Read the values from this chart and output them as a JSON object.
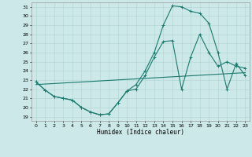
{
  "title": "",
  "xlabel": "Humidex (Indice chaleur)",
  "bg_color": "#cce8e8",
  "line_color": "#1a7a6e",
  "xlim": [
    -0.5,
    23.5
  ],
  "ylim": [
    18.5,
    31.5
  ],
  "xticks": [
    0,
    1,
    2,
    3,
    4,
    5,
    6,
    7,
    8,
    9,
    10,
    11,
    12,
    13,
    14,
    15,
    16,
    17,
    18,
    19,
    20,
    21,
    22,
    23
  ],
  "yticks": [
    19,
    20,
    21,
    22,
    23,
    24,
    25,
    26,
    27,
    28,
    29,
    30,
    31
  ],
  "line1_x": [
    0,
    1,
    2,
    3,
    4,
    5,
    6,
    7,
    8,
    9,
    10,
    11,
    12,
    13,
    14,
    15,
    16,
    17,
    18,
    19,
    20,
    21,
    22,
    23
  ],
  "line1_y": [
    22.8,
    21.9,
    21.2,
    21.0,
    20.8,
    20.0,
    19.5,
    19.2,
    19.3,
    20.5,
    21.8,
    22.0,
    23.5,
    25.5,
    27.2,
    27.3,
    22.0,
    25.5,
    28.0,
    26.0,
    24.5,
    25.0,
    24.5,
    24.3
  ],
  "line2_x": [
    0,
    1,
    2,
    3,
    4,
    5,
    6,
    7,
    8,
    9,
    10,
    11,
    12,
    13,
    14,
    15,
    16,
    17,
    18,
    19,
    20,
    21,
    22,
    23
  ],
  "line2_y": [
    22.8,
    21.9,
    21.2,
    21.0,
    20.8,
    20.0,
    19.5,
    19.2,
    19.3,
    20.5,
    21.8,
    22.5,
    24.0,
    26.0,
    29.0,
    31.1,
    31.0,
    30.5,
    30.3,
    29.2,
    26.0,
    22.0,
    24.8,
    23.5
  ],
  "line3_x": [
    0,
    23
  ],
  "line3_y": [
    22.5,
    23.8
  ],
  "marker": "+",
  "markersize": 3,
  "linewidth": 0.8,
  "grid_color": "#b0d4d4"
}
